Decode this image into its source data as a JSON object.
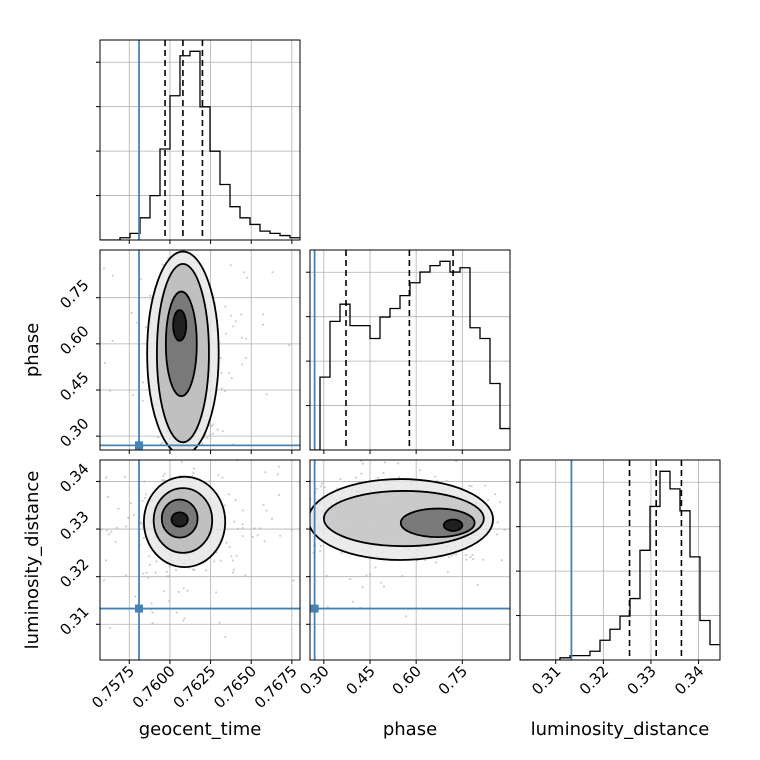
{
  "colors": {
    "truth": "#4682b4",
    "hist": "#000000",
    "grid": "#b0b0b0",
    "points": "#a8a8a8"
  },
  "chart_data": {
    "type": "corner",
    "parameters": [
      "geocent_time",
      "phase",
      "luminosity_distance"
    ],
    "truth": {
      "geocent_time": 0.7581,
      "phase": 0.27,
      "luminosity_distance": 0.3133
    },
    "ranges": {
      "geocent_time": [
        0.7557,
        0.768
      ],
      "phase": [
        0.255,
        0.905
      ],
      "luminosity_distance": [
        0.3025,
        0.3445
      ]
    },
    "ticks": {
      "geocent_time": [
        "0.7575",
        "0.7600",
        "0.7625",
        "0.7650",
        "0.7675"
      ],
      "phase": [
        "0.30",
        "0.45",
        "0.60",
        "0.75"
      ],
      "luminosity_distance": [
        "0.31",
        "0.32",
        "0.33",
        "0.34"
      ]
    },
    "quantiles": {
      "geocent_time": [
        0.7597,
        0.7608,
        0.762
      ],
      "phase": [
        0.372,
        0.578,
        0.72
      ],
      "luminosity_distance": [
        0.3255,
        0.3311,
        0.3364
      ]
    },
    "histograms": {
      "geocent_time": {
        "edges_start": 0.7557,
        "bin_width": 0.000615,
        "counts": [
          0,
          0,
          1,
          3,
          10,
          20,
          41,
          65,
          83,
          85,
          60,
          40,
          25,
          15,
          10,
          7,
          4,
          3,
          2,
          1
        ]
      },
      "phase": {
        "edges_start": 0.255,
        "bin_width": 0.0325,
        "counts": [
          0,
          34,
          60,
          68,
          58,
          58,
          52,
          62,
          66,
          72,
          78,
          83,
          86,
          88,
          83,
          85,
          57,
          52,
          31,
          10
        ]
      },
      "luminosity_distance": {
        "edges_start": 0.3025,
        "bin_width": 0.0021,
        "counts": [
          0,
          0,
          0,
          0,
          1,
          2,
          2,
          4,
          9,
          14,
          20,
          28,
          50,
          70,
          86,
          78,
          68,
          47,
          18,
          7
        ]
      }
    },
    "scatter_clusters": {
      "geocent_time_vs_phase": [
        {
          "x": 0.7608,
          "y": 0.66,
          "sx": 0.00078,
          "sy": 0.085,
          "n": 330
        },
        {
          "x": 0.7607,
          "y": 0.44,
          "sx": 0.0007,
          "sy": 0.09,
          "n": 220
        },
        {
          "x": 0.761,
          "y": 0.32,
          "sx": 0.00075,
          "sy": 0.025,
          "n": 80
        },
        {
          "x": 0.7612,
          "y": 0.58,
          "sx": 0.0025,
          "sy": 0.16,
          "n": 120
        }
      ],
      "geocent_time_vs_luminosity_distance": [
        {
          "x": 0.7606,
          "y": 0.332,
          "sx": 0.0009,
          "sy": 0.004,
          "n": 450
        },
        {
          "x": 0.7612,
          "y": 0.33,
          "sx": 0.0028,
          "sy": 0.0085,
          "n": 180
        }
      ],
      "phase_vs_luminosity_distance": [
        {
          "x": 0.38,
          "y": 0.335,
          "sx": 0.07,
          "sy": 0.0025,
          "n": 160
        },
        {
          "x": 0.66,
          "y": 0.3315,
          "sx": 0.08,
          "sy": 0.003,
          "n": 340
        },
        {
          "x": 0.55,
          "y": 0.332,
          "sx": 0.2,
          "sy": 0.007,
          "n": 200
        }
      ]
    },
    "contours": {
      "geocent_time_vs_phase": [
        {
          "cx": 0.7608,
          "cy": 0.57,
          "rx": 0.0022,
          "ry": 0.33,
          "shade": "#e8e8e8"
        },
        {
          "cx": 0.7608,
          "cy": 0.57,
          "rx": 0.0016,
          "ry": 0.29,
          "shade": "#b8b8b8"
        },
        {
          "cx": 0.7607,
          "cy": 0.6,
          "rx": 0.00095,
          "ry": 0.17,
          "shade": "#6c6c6c"
        },
        {
          "cx": 0.7606,
          "cy": 0.66,
          "rx": 0.0004,
          "ry": 0.05,
          "shade": "#111111"
        }
      ],
      "geocent_time_vs_luminosity_distance": [
        {
          "cx": 0.7609,
          "cy": 0.3315,
          "rx": 0.0025,
          "ry": 0.0095,
          "shade": "#e8e8e8"
        },
        {
          "cx": 0.7608,
          "cy": 0.3318,
          "rx": 0.0018,
          "ry": 0.0068,
          "shade": "#b8b8b8"
        },
        {
          "cx": 0.7606,
          "cy": 0.3322,
          "rx": 0.0011,
          "ry": 0.004,
          "shade": "#6c6c6c"
        },
        {
          "cx": 0.7606,
          "cy": 0.332,
          "rx": 0.0005,
          "ry": 0.0015,
          "shade": "#111111"
        }
      ],
      "phase_vs_luminosity_distance": [
        {
          "cx": 0.55,
          "cy": 0.332,
          "rx": 0.3,
          "ry": 0.0085,
          "shade": "#e8e8e8"
        },
        {
          "cx": 0.56,
          "cy": 0.3322,
          "rx": 0.26,
          "ry": 0.0058,
          "shade": "#c4c4c4"
        },
        {
          "cx": 0.67,
          "cy": 0.3313,
          "rx": 0.12,
          "ry": 0.003,
          "shade": "#6c6c6c"
        },
        {
          "cx": 0.72,
          "cy": 0.3308,
          "rx": 0.03,
          "ry": 0.0012,
          "shade": "#111111"
        }
      ]
    },
    "xlabel": [
      "geocent_time",
      "phase",
      "luminosity_distance"
    ],
    "ylabel": [
      "phase",
      "luminosity_distance"
    ],
    "grid": true
  }
}
